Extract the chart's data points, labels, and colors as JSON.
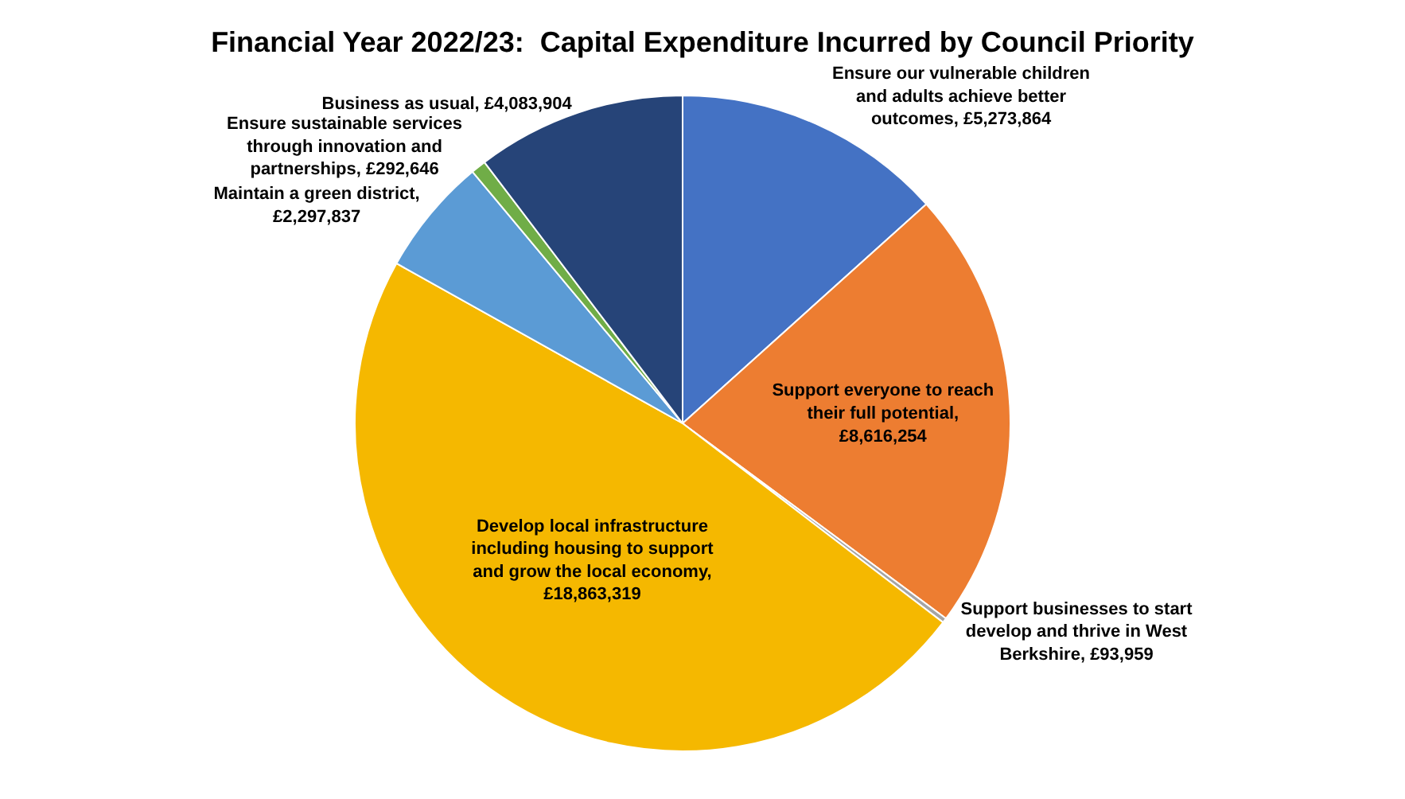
{
  "chart_data": {
    "type": "pie",
    "title": "Financial Year 2022/23:  Capital Expenditure Incurred by Council Priority",
    "categories": [
      "Ensure our vulnerable children and adults achieve better outcomes, £5,273,864",
      "Support everyone to reach their full potential, £8,616,254",
      "Support businesses to start develop and thrive in West Berkshire, £93,959",
      "Develop local infrastructure including housing to support and grow the local economy, £18,863,319",
      "Maintain a green district, £2,297,837",
      "Ensure sustainable services through innovation and partnerships, £292,646",
      "Business as usual, £4,083,904"
    ],
    "values": [
      5273864,
      8616254,
      93959,
      18863319,
      2297837,
      292646,
      4083904
    ],
    "colors": [
      "#4472c4",
      "#ed7d31",
      "#a5a5a5",
      "#f5b800",
      "#5b9bd5",
      "#70ad47",
      "#264478"
    ],
    "legend": false
  }
}
